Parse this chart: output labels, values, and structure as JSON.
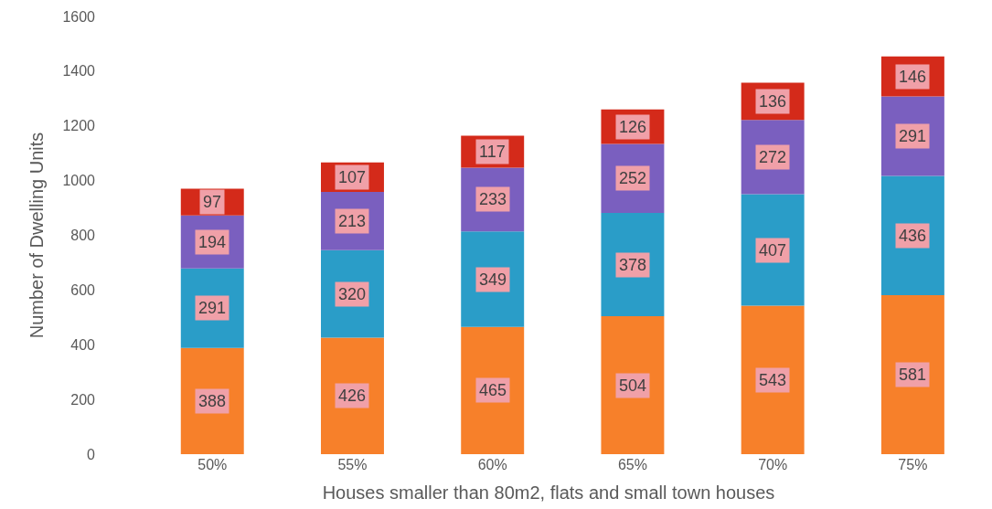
{
  "chart_data": {
    "type": "bar",
    "stacked": true,
    "xlabel": "Houses smaller than 80m2, flats and small town houses",
    "ylabel": "Number of Dwelling Units",
    "categories": [
      "50%",
      "55%",
      "60%",
      "65%",
      "70%",
      "75%"
    ],
    "series": [
      {
        "color": "#f7802a",
        "values": [
          388,
          426,
          465,
          504,
          543,
          581
        ]
      },
      {
        "color": "#2a9dc8",
        "values": [
          291,
          320,
          349,
          378,
          407,
          436
        ]
      },
      {
        "color": "#7a5fbf",
        "values": [
          194,
          213,
          233,
          252,
          272,
          291
        ]
      },
      {
        "color": "#d42a1a",
        "values": [
          97,
          107,
          117,
          126,
          136,
          146
        ]
      }
    ],
    "ylim": [
      0,
      1600
    ],
    "yticks": [
      0,
      200,
      400,
      600,
      800,
      1000,
      1200,
      1400,
      1600
    ],
    "data_labels": true
  }
}
